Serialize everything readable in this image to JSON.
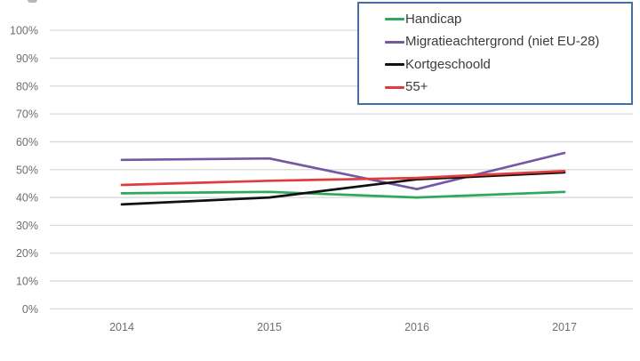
{
  "chart_data": {
    "type": "line",
    "title": "",
    "x_categories": [
      "2014",
      "2015",
      "2016",
      "2017"
    ],
    "y_tick_labels": [
      "0%",
      "10%",
      "20%",
      "30%",
      "40%",
      "50%",
      "60%",
      "70%",
      "80%",
      "90%",
      "100%"
    ],
    "ylim": [
      0,
      100
    ],
    "grid": true,
    "legend_position": "top-right",
    "series": [
      {
        "name": "Handicap",
        "color": "#2EA85C",
        "values": [
          41.5,
          42,
          40,
          42
        ]
      },
      {
        "name": "Migratieachtergrond (niet EU-28)",
        "color": "#7458A3",
        "values": [
          53.5,
          54,
          43,
          56
        ]
      },
      {
        "name": "Kortgeschoold",
        "color": "#111111",
        "values": [
          37.5,
          40,
          46.5,
          49
        ]
      },
      {
        "name": "55+",
        "color": "#E13B3E",
        "values": [
          44.5,
          46,
          47,
          49.5
        ]
      }
    ],
    "colors": {
      "gridline": "#D9D9D9",
      "tick_label": "#6E6E6E",
      "legend_border": "#41719C",
      "legend_text": "#3B3B3B",
      "background": "#FFFFFF"
    }
  }
}
